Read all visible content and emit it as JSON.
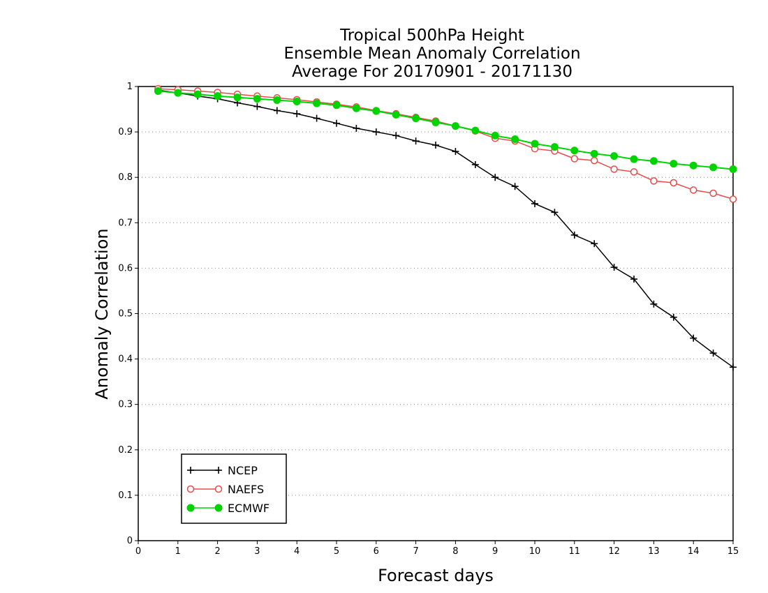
{
  "chart_data": {
    "type": "line",
    "title": [
      "Tropical 500hPa Height",
      "Ensemble Mean Anomaly Correlation",
      "Average For 20170901 - 20171130"
    ],
    "xlabel": "Forecast days",
    "ylabel": "Anomaly Correlation",
    "xlim": [
      0,
      15
    ],
    "ylim": [
      0,
      1
    ],
    "xticks": [
      "0",
      "1",
      "2",
      "3",
      "4",
      "5",
      "6",
      "7",
      "8",
      "9",
      "10",
      "11",
      "12",
      "13",
      "14",
      "15"
    ],
    "yticks": [
      "0",
      "0.1",
      "0.2",
      "0.3",
      "0.4",
      "0.5",
      "0.6",
      "0.7",
      "0.8",
      "0.9",
      "1"
    ],
    "grid": "horizontal dotted",
    "legend_position": "bottom-left",
    "x": [
      0.5,
      1,
      1.5,
      2,
      2.5,
      3,
      3.5,
      4,
      4.5,
      5,
      5.5,
      6,
      6.5,
      7,
      7.5,
      8,
      8.5,
      9,
      9.5,
      10,
      10.5,
      11,
      11.5,
      12,
      12.5,
      13,
      13.5,
      14,
      14.5,
      15
    ],
    "series": [
      {
        "name": "NCEP",
        "color": "#000000",
        "marker": "plus",
        "values": [
          0.992,
          0.986,
          0.979,
          0.973,
          0.964,
          0.956,
          0.947,
          0.94,
          0.93,
          0.919,
          0.908,
          0.9,
          0.892,
          0.88,
          0.871,
          0.857,
          0.828,
          0.8,
          0.78,
          0.742,
          0.723,
          0.673,
          0.654,
          0.602,
          0.576,
          0.521,
          0.492,
          0.446,
          0.413,
          0.382
        ]
      },
      {
        "name": "NAEFS",
        "color": "#e84a4a",
        "marker": "open-circle",
        "values": [
          0.995,
          0.993,
          0.99,
          0.987,
          0.983,
          0.979,
          0.975,
          0.971,
          0.966,
          0.961,
          0.955,
          0.947,
          0.94,
          0.932,
          0.924,
          0.913,
          0.902,
          0.886,
          0.88,
          0.863,
          0.858,
          0.841,
          0.837,
          0.818,
          0.812,
          0.792,
          0.788,
          0.772,
          0.765,
          0.752
        ]
      },
      {
        "name": "ECMWF",
        "color": "#00d400",
        "marker": "filled-circle",
        "values": [
          0.99,
          0.986,
          0.983,
          0.979,
          0.976,
          0.973,
          0.97,
          0.967,
          0.963,
          0.959,
          0.952,
          0.946,
          0.938,
          0.93,
          0.921,
          0.913,
          0.903,
          0.892,
          0.884,
          0.874,
          0.867,
          0.859,
          0.852,
          0.847,
          0.84,
          0.836,
          0.83,
          0.826,
          0.822,
          0.818
        ]
      }
    ]
  }
}
